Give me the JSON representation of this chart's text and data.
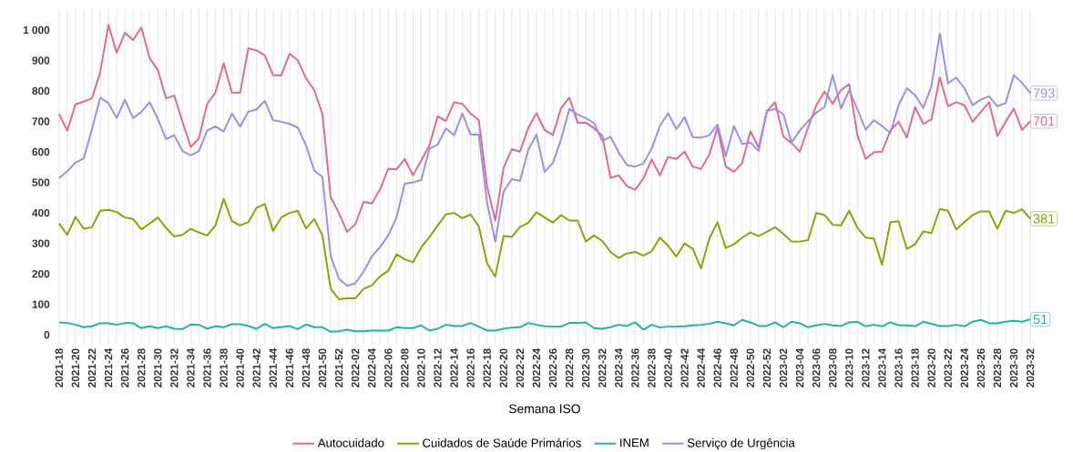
{
  "chart_data": {
    "type": "line",
    "xlabel": "Semana ISO",
    "categories": [
      "2021-18",
      null,
      "2021-20",
      null,
      "2021-22",
      null,
      "2021-24",
      null,
      "2021-26",
      null,
      "2021-28",
      null,
      "2021-30",
      null,
      "2021-32",
      null,
      "2021-34",
      null,
      "2021-36",
      null,
      "2021-38",
      null,
      "2021-40",
      null,
      "2021-42",
      null,
      "2021-44",
      null,
      "2021-46",
      null,
      "2021-48",
      null,
      "2021-50",
      null,
      "2021-52",
      null,
      "2022-02",
      null,
      "2022-04",
      null,
      "2022-06",
      null,
      "2022-08",
      null,
      "2022-10",
      null,
      "2022-12",
      null,
      "2022-14",
      null,
      "2022-16",
      null,
      "2022-18",
      null,
      "2022-20",
      null,
      "2022-22",
      null,
      "2022-24",
      null,
      "2022-26",
      null,
      "2022-28",
      null,
      "2022-30",
      null,
      "2022-32",
      null,
      "2022-34",
      null,
      "2022-36",
      null,
      "2022-38",
      null,
      "2022-40",
      null,
      "2022-42",
      null,
      "2022-44",
      null,
      "2022-46",
      null,
      "2022-48",
      null,
      "2022-50",
      null,
      "2022-52",
      null,
      "2023-02",
      null,
      "2023-04",
      null,
      "2023-06",
      null,
      "2023-08",
      null,
      "2023-10",
      null,
      "2023-12",
      null,
      "2023-14",
      null,
      "2023-16",
      null,
      "2023-18",
      null,
      "2023-20",
      null,
      "2023-22",
      null,
      "2023-24",
      null,
      "2023-26",
      null,
      "2023-28",
      null,
      "2023-30",
      null,
      "2023-32"
    ],
    "series": [
      {
        "name": "Autocuidado",
        "color": "#e7698a",
        "values": [
          724,
          670,
          756,
          765,
          776,
          861,
          1017,
          925,
          991,
          967,
          1009,
          908,
          869,
          776,
          785,
          699,
          616,
          645,
          758,
          795,
          891,
          795,
          794,
          940,
          933,
          917,
          852,
          851,
          922,
          901,
          842,
          803,
          724,
          452,
          400,
          338,
          363,
          436,
          431,
          477,
          545,
          543,
          577,
          523,
          572,
          621,
          717,
          701,
          763,
          758,
          726,
          704,
          488,
          375,
          547,
          609,
          601,
          678,
          727,
          672,
          655,
          744,
          778,
          696,
          696,
          678,
          653,
          515,
          523,
          488,
          476,
          513,
          576,
          523,
          584,
          577,
          601,
          552,
          544,
          591,
          680,
          552,
          535,
          564,
          668,
          614,
          734,
          763,
          650,
          629,
          601,
          680,
          753,
          798,
          758,
          803,
          822,
          655,
          577,
          599,
          601,
          670,
          699,
          647,
          747,
          692,
          707,
          845,
          750,
          763,
          753,
          699,
          731,
          763,
          652,
          699,
          742,
          672,
          701
        ],
        "value_labels": [
          null,
          null,
          null,
          null,
          null,
          null,
          null,
          null,
          null,
          null,
          null,
          null,
          null,
          null,
          null,
          null,
          null,
          null,
          null,
          null,
          null,
          null,
          null,
          null,
          null,
          null,
          null,
          null,
          null,
          null,
          null,
          null,
          null,
          null,
          null,
          null,
          null,
          null,
          null,
          null,
          null,
          null,
          null,
          null,
          null,
          null,
          null,
          null,
          null,
          null,
          null,
          null,
          null,
          null,
          null,
          null,
          null,
          null,
          null,
          null,
          null,
          null,
          null,
          null,
          null,
          null,
          null,
          null,
          null,
          null,
          null,
          null,
          null,
          null,
          null,
          null,
          null,
          null,
          null,
          null,
          null,
          null,
          null,
          null,
          null,
          null,
          null,
          null,
          null,
          null,
          null,
          null,
          null,
          null,
          null,
          null,
          null,
          null,
          null,
          null,
          null,
          null,
          null,
          null,
          null,
          null,
          null,
          null,
          null,
          null,
          null,
          null,
          null,
          null,
          null,
          null,
          null,
          null,
          "701"
        ]
      },
      {
        "name": "Cuidados de Saúde Primários",
        "color": "#93a100",
        "values": [
          365,
          328,
          387,
          348,
          353,
          407,
          410,
          403,
          385,
          380,
          346,
          365,
          385,
          351,
          323,
          328,
          348,
          336,
          326,
          359,
          446,
          373,
          359,
          370,
          417,
          429,
          341,
          385,
          400,
          407,
          349,
          380,
          326,
          151,
          117,
          120,
          120,
          151,
          162,
          192,
          210,
          264,
          248,
          238,
          287,
          321,
          359,
          395,
          400,
          383,
          395,
          356,
          235,
          191,
          324,
          321,
          354,
          367,
          402,
          385,
          368,
          393,
          375,
          375,
          306,
          326,
          308,
          272,
          252,
          267,
          272,
          260,
          274,
          319,
          292,
          257,
          300,
          282,
          218,
          316,
          369,
          285,
          297,
          319,
          336,
          324,
          338,
          353,
          331,
          306,
          306,
          311,
          400,
          393,
          361,
          359,
          407,
          351,
          319,
          316,
          230,
          370,
          373,
          282,
          297,
          339,
          334,
          413,
          407,
          346,
          370,
          393,
          405,
          405,
          348,
          407,
          400,
          412,
          381
        ],
        "value_labels": [
          null,
          null,
          null,
          null,
          null,
          null,
          null,
          null,
          null,
          null,
          null,
          null,
          null,
          null,
          null,
          null,
          null,
          null,
          null,
          null,
          null,
          null,
          null,
          null,
          null,
          null,
          null,
          null,
          null,
          null,
          null,
          null,
          null,
          null,
          null,
          null,
          null,
          null,
          null,
          null,
          null,
          null,
          null,
          null,
          null,
          null,
          null,
          null,
          null,
          null,
          null,
          null,
          null,
          null,
          null,
          null,
          null,
          null,
          null,
          null,
          null,
          null,
          null,
          null,
          null,
          null,
          null,
          null,
          null,
          null,
          null,
          null,
          null,
          null,
          null,
          null,
          null,
          null,
          null,
          null,
          null,
          null,
          null,
          null,
          null,
          null,
          null,
          null,
          null,
          null,
          null,
          null,
          null,
          null,
          null,
          null,
          null,
          null,
          null,
          null,
          null,
          null,
          null,
          null,
          null,
          null,
          null,
          null,
          null,
          null,
          null,
          null,
          null,
          null,
          null,
          null,
          null,
          null,
          "381"
        ]
      },
      {
        "name": "INEM",
        "color": "#1cb89c",
        "values": [
          41,
          39,
          33,
          25,
          28,
          38,
          38,
          33,
          39,
          38,
          22,
          28,
          22,
          28,
          20,
          19,
          34,
          33,
          20,
          28,
          25,
          35,
          35,
          29,
          20,
          36,
          22,
          25,
          29,
          19,
          34,
          25,
          25,
          10,
          12,
          17,
          12,
          12,
          14,
          14,
          14,
          25,
          22,
          22,
          31,
          14,
          20,
          33,
          29,
          29,
          39,
          27,
          14,
          14,
          20,
          24,
          25,
          39,
          33,
          28,
          27,
          27,
          39,
          39,
          41,
          22,
          20,
          25,
          33,
          29,
          41,
          17,
          33,
          24,
          27,
          27,
          28,
          31,
          33,
          36,
          43,
          38,
          31,
          49,
          41,
          29,
          29,
          41,
          25,
          43,
          38,
          25,
          31,
          36,
          31,
          29,
          41,
          43,
          28,
          33,
          28,
          41,
          31,
          31,
          28,
          43,
          36,
          29,
          29,
          33,
          28,
          43,
          49,
          38,
          38,
          43,
          46,
          43,
          51
        ],
        "value_labels": [
          null,
          null,
          null,
          null,
          null,
          null,
          null,
          null,
          null,
          null,
          null,
          null,
          null,
          null,
          null,
          null,
          null,
          null,
          null,
          null,
          null,
          null,
          null,
          null,
          null,
          null,
          null,
          null,
          null,
          null,
          null,
          null,
          null,
          null,
          null,
          null,
          null,
          null,
          null,
          null,
          null,
          null,
          null,
          null,
          null,
          null,
          null,
          null,
          null,
          null,
          null,
          null,
          null,
          null,
          null,
          null,
          null,
          null,
          null,
          null,
          null,
          null,
          null,
          null,
          null,
          null,
          null,
          null,
          null,
          null,
          null,
          null,
          null,
          null,
          null,
          null,
          null,
          null,
          null,
          null,
          null,
          null,
          null,
          null,
          null,
          null,
          null,
          null,
          null,
          null,
          null,
          null,
          null,
          null,
          null,
          null,
          null,
          null,
          null,
          null,
          null,
          null,
          null,
          null,
          null,
          null,
          null,
          null,
          null,
          null,
          null,
          null,
          null,
          null,
          null,
          null,
          null,
          null,
          "51"
        ]
      },
      {
        "name": "Serviço de Urgência",
        "color": "#9b8ef0",
        "values": [
          514,
          537,
          565,
          579,
          675,
          778,
          760,
          711,
          771,
          711,
          731,
          763,
          709,
          642,
          655,
          603,
          589,
          603,
          670,
          684,
          667,
          726,
          683,
          732,
          739,
          768,
          704,
          699,
          692,
          680,
          622,
          539,
          518,
          259,
          184,
          161,
          169,
          208,
          257,
          288,
          326,
          385,
          496,
          500,
          508,
          611,
          624,
          677,
          655,
          726,
          657,
          657,
          434,
          306,
          469,
          511,
          505,
          606,
          657,
          534,
          564,
          642,
          741,
          722,
          711,
          695,
          636,
          650,
          598,
          557,
          552,
          562,
          611,
          685,
          727,
          675,
          714,
          648,
          647,
          655,
          690,
          586,
          685,
          626,
          631,
          603,
          734,
          741,
          724,
          631,
          670,
          701,
          729,
          747,
          852,
          742,
          803,
          739,
          673,
          704,
          685,
          662,
          753,
          809,
          787,
          744,
          817,
          989,
          825,
          844,
          809,
          753,
          772,
          782,
          750,
          760,
          852,
          827,
          793
        ],
        "value_labels": [
          null,
          null,
          null,
          null,
          null,
          null,
          null,
          null,
          null,
          null,
          null,
          null,
          null,
          null,
          null,
          null,
          null,
          null,
          null,
          null,
          null,
          null,
          null,
          null,
          null,
          null,
          null,
          null,
          null,
          null,
          null,
          null,
          null,
          null,
          null,
          null,
          null,
          null,
          null,
          null,
          null,
          null,
          null,
          null,
          null,
          null,
          null,
          null,
          null,
          null,
          null,
          null,
          null,
          null,
          null,
          null,
          null,
          null,
          null,
          null,
          null,
          null,
          null,
          null,
          null,
          null,
          null,
          null,
          null,
          null,
          null,
          null,
          null,
          null,
          null,
          null,
          null,
          null,
          null,
          null,
          null,
          null,
          null,
          null,
          null,
          null,
          null,
          null,
          null,
          null,
          null,
          null,
          null,
          null,
          null,
          null,
          null,
          null,
          null,
          null,
          null,
          null,
          null,
          null,
          null,
          null,
          null,
          null,
          null,
          null,
          null,
          null,
          null,
          null,
          null,
          null,
          null,
          null,
          "793"
        ]
      }
    ],
    "ylim": [
      -30,
      1070
    ],
    "yticks": [
      0,
      100,
      200,
      300,
      400,
      500,
      600,
      700,
      800,
      900,
      {
        "value": 1000,
        "label": "1 000"
      }
    ],
    "grid": "x",
    "legend": "bottom",
    "marker": "none",
    "line_style": "solid"
  }
}
